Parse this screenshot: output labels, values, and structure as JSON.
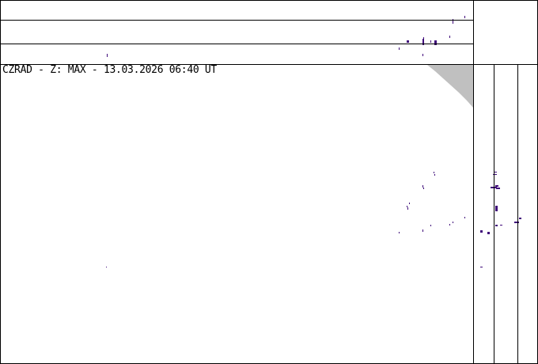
{
  "radar": {
    "title": "CZRAD - Z: MAX - 13.03.2026 06:40 UT",
    "echo_color": "#3f0a7a",
    "mask_color": "#c0c0c0"
  }
}
